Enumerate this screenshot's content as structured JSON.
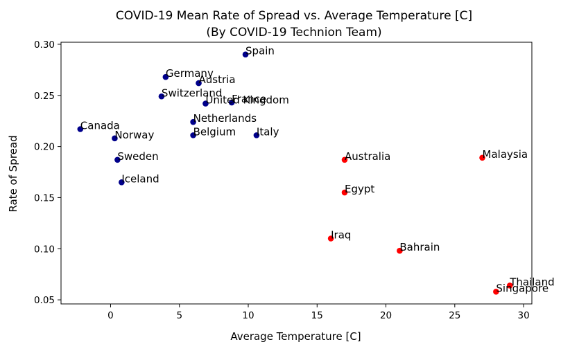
{
  "chart_data": {
    "type": "scatter",
    "title": "COVID-19 Mean Rate of Spread vs. Average Temperature [C]",
    "subtitle": "(By COVID-19 Technion Team)",
    "xlabel": "Average Temperature [C]",
    "ylabel": "Rate of Spread",
    "xlim": [
      -3.6,
      30.6
    ],
    "ylim": [
      0.046,
      0.302
    ],
    "xticks": [
      0,
      5,
      10,
      15,
      20,
      25,
      30
    ],
    "xtick_labels": [
      "0",
      "5",
      "10",
      "15",
      "20",
      "25",
      "30"
    ],
    "yticks": [
      0.05,
      0.1,
      0.15,
      0.2,
      0.25,
      0.3
    ],
    "ytick_labels": [
      "0.05",
      "0.10",
      "0.15",
      "0.20",
      "0.25",
      "0.30"
    ],
    "grid": false,
    "colors": {
      "cold": "#00008b",
      "warm": "#ff0000"
    },
    "points": [
      {
        "label": "Spain",
        "x": 9.8,
        "y": 0.29,
        "color": "#00008b"
      },
      {
        "label": "Germany",
        "x": 4.0,
        "y": 0.268,
        "color": "#00008b"
      },
      {
        "label": "Austria",
        "x": 6.4,
        "y": 0.262,
        "color": "#00008b"
      },
      {
        "label": "Switzerland",
        "x": 3.7,
        "y": 0.249,
        "color": "#00008b"
      },
      {
        "label": "United Kingdom",
        "x": 6.9,
        "y": 0.242,
        "color": "#00008b"
      },
      {
        "label": "France",
        "x": 8.8,
        "y": 0.243,
        "color": "#00008b"
      },
      {
        "label": "Netherlands",
        "x": 6.0,
        "y": 0.224,
        "color": "#00008b"
      },
      {
        "label": "Canada",
        "x": -2.2,
        "y": 0.217,
        "color": "#00008b"
      },
      {
        "label": "Norway",
        "x": 0.3,
        "y": 0.208,
        "color": "#00008b"
      },
      {
        "label": "Belgium",
        "x": 6.0,
        "y": 0.211,
        "color": "#00008b"
      },
      {
        "label": "Italy",
        "x": 10.6,
        "y": 0.211,
        "color": "#00008b"
      },
      {
        "label": "Sweden",
        "x": 0.5,
        "y": 0.187,
        "color": "#00008b"
      },
      {
        "label": "Iceland",
        "x": 0.8,
        "y": 0.165,
        "color": "#00008b"
      },
      {
        "label": "Australia",
        "x": 17.0,
        "y": 0.187,
        "color": "#ff0000"
      },
      {
        "label": "Malaysia",
        "x": 27.0,
        "y": 0.189,
        "color": "#ff0000"
      },
      {
        "label": "Egypt",
        "x": 17.0,
        "y": 0.155,
        "color": "#ff0000"
      },
      {
        "label": "Iraq",
        "x": 16.0,
        "y": 0.11,
        "color": "#ff0000"
      },
      {
        "label": "Bahrain",
        "x": 21.0,
        "y": 0.098,
        "color": "#ff0000"
      },
      {
        "label": "Thailand",
        "x": 29.0,
        "y": 0.064,
        "color": "#ff0000"
      },
      {
        "label": "Singapore",
        "x": 28.0,
        "y": 0.058,
        "color": "#ff0000"
      }
    ]
  }
}
